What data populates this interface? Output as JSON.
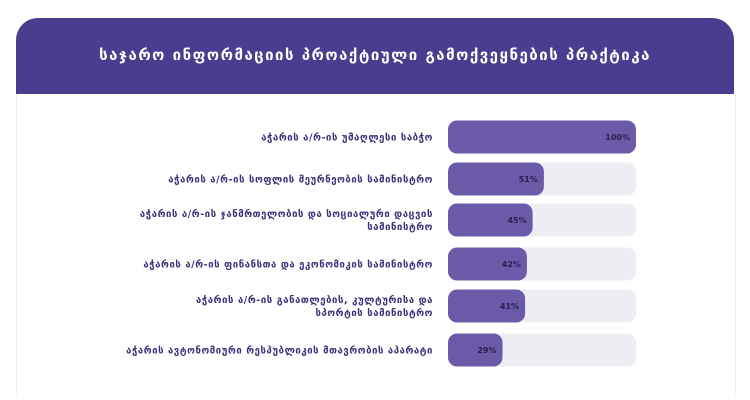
{
  "chart_data": {
    "type": "bar",
    "orientation": "horizontal",
    "title": "საჯარო ინფორმაციის პროაქტიული გამოქვეყნების პრაქტიკა",
    "categories": [
      [
        "აჭარის ა/რ-ის უმაღლესი საბჭო"
      ],
      [
        "აჭარის ა/რ-ის სოფლის მეურნეობის სამინისტრო"
      ],
      [
        "აჭარის ა/რ-ის ჯანმრთელობის და სოციალური დაცვის",
        "სამინისტრო"
      ],
      [
        "აჭარის ა/რ-ის ფინანსთა და ეკონომიკის სამინისტრო"
      ],
      [
        "აჭარის ა/რ-ის განათლების, კულტურისა და",
        "სპორტის სამინისტრო"
      ],
      [
        "აჭარის ავტონომიური რესპუბლიკის მთავრობის აპარატი"
      ]
    ],
    "values": [
      100,
      51,
      45,
      42,
      41,
      29
    ],
    "value_labels": [
      "100%",
      "51%",
      "45%",
      "42%",
      "41%",
      "29%"
    ],
    "xlim": [
      0,
      100
    ],
    "colors": {
      "bar": "#6a5aa8",
      "track": "#ededf4",
      "header": "#4a3d8f"
    }
  }
}
